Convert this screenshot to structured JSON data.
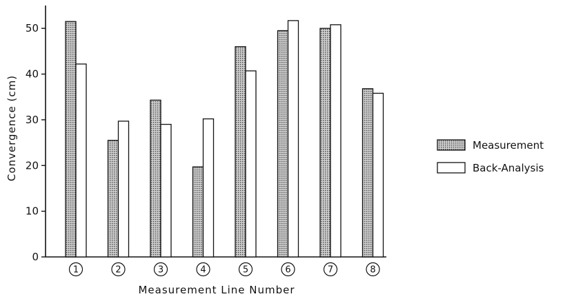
{
  "chart_data": {
    "type": "bar",
    "title": "",
    "xlabel": "Measurement Line Number",
    "ylabel": "Convergence (cm)",
    "ylim": [
      0,
      55
    ],
    "yticks": [
      0,
      10,
      20,
      30,
      40,
      50
    ],
    "categories": [
      "1",
      "2",
      "3",
      "4",
      "5",
      "6",
      "7",
      "8"
    ],
    "category_style": "circled-numbers",
    "series": [
      {
        "name": "Measurement",
        "fill": "dotted",
        "values": [
          51.5,
          25.5,
          34.3,
          19.7,
          46.0,
          49.5,
          50.0,
          36.8
        ]
      },
      {
        "name": "Back-Analysis",
        "fill": "white",
        "values": [
          42.2,
          29.7,
          29.0,
          30.2,
          40.7,
          51.7,
          50.8,
          35.8
        ]
      }
    ],
    "legend_position": "right",
    "grid": false
  }
}
